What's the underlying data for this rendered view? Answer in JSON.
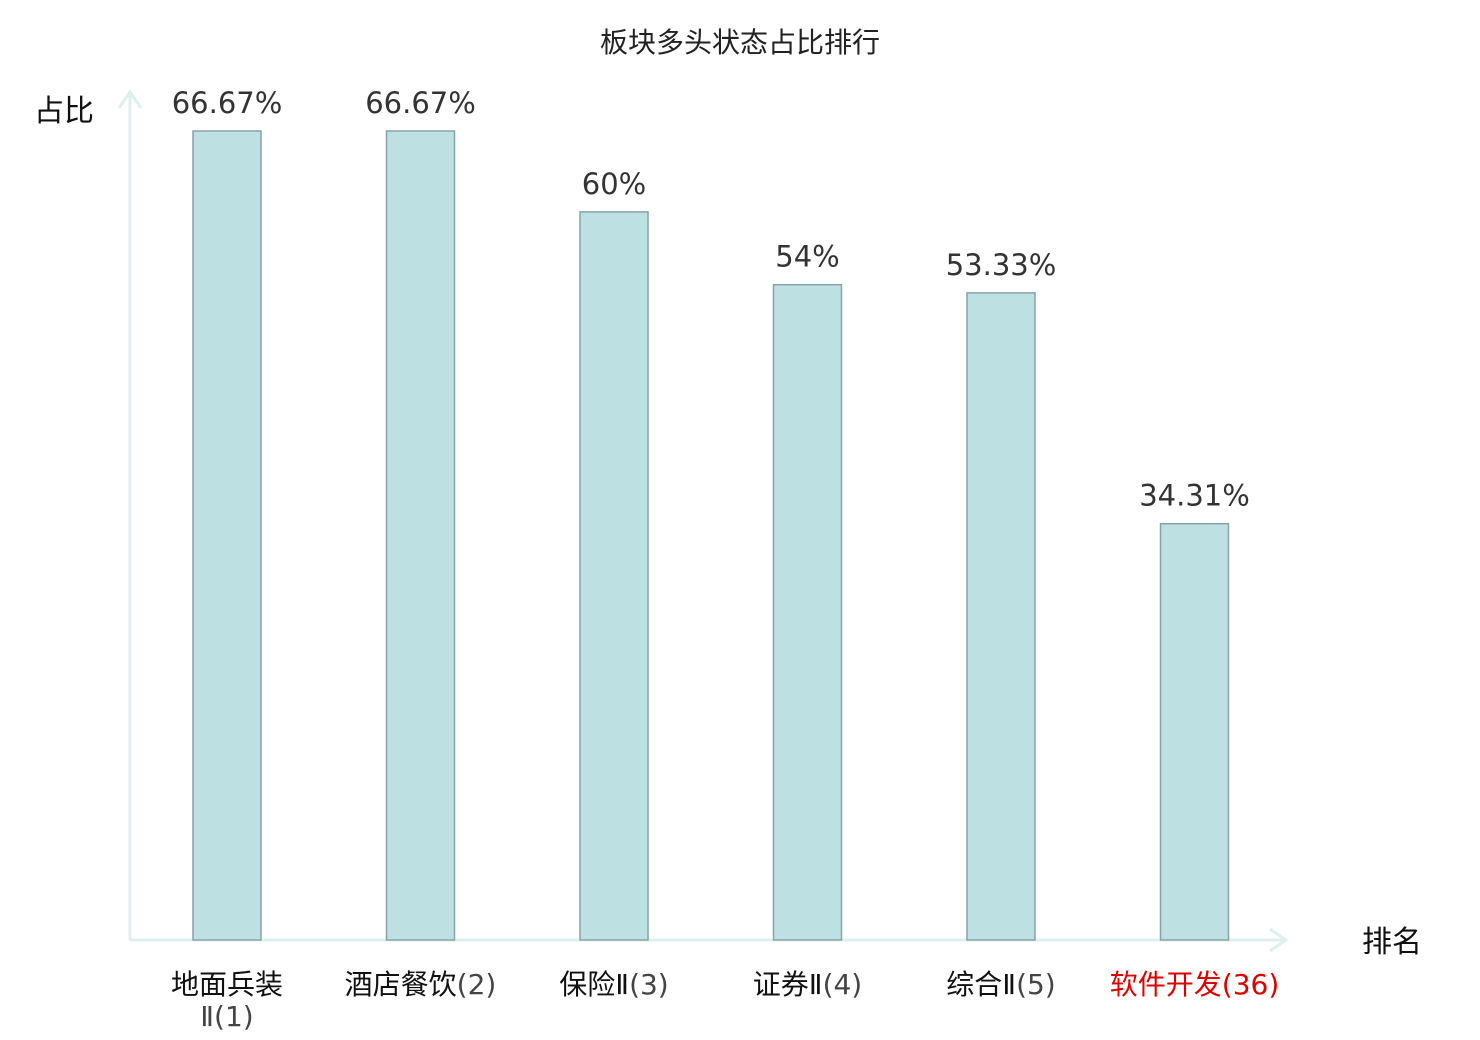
{
  "chart_data": {
    "type": "bar",
    "title": "板块多头状态占比排行",
    "ylabel": "占比",
    "xlabel": "排名",
    "ylim": [
      0,
      70
    ],
    "grid": false,
    "legend": "none",
    "categories": [
      {
        "name": "地面兵装Ⅱ",
        "rank": "(1)",
        "highlight": false
      },
      {
        "name": "酒店餐饮",
        "rank": "(2)",
        "highlight": false
      },
      {
        "name": "保险Ⅱ",
        "rank": "(3)",
        "highlight": false
      },
      {
        "name": "证券Ⅱ",
        "rank": "(4)",
        "highlight": false
      },
      {
        "name": "综合Ⅱ",
        "rank": "(5)",
        "highlight": false
      },
      {
        "name": "软件开发",
        "rank": "(36)",
        "highlight": true
      }
    ],
    "values": [
      66.67,
      66.67,
      60,
      54,
      53.33,
      34.31
    ],
    "value_labels": [
      "66.67%",
      "66.67%",
      "60%",
      "54%",
      "53.33%",
      "34.31%"
    ],
    "colors": {
      "bar_fill": "#bde0e3",
      "bar_stroke": "#88a4a7",
      "axis": "#ddf0ef",
      "highlight": "#e00000"
    }
  }
}
